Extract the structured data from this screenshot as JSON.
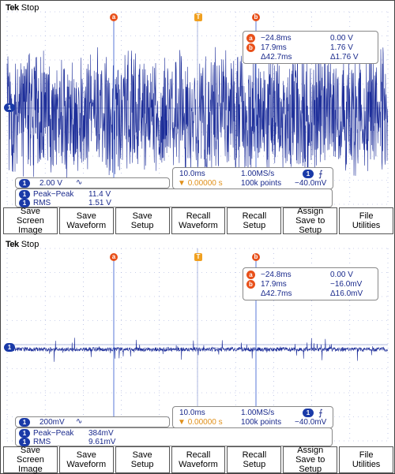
{
  "panels": [
    {
      "brand": "Tek",
      "status": "Stop",
      "cursor_a_time": "−24.8ms",
      "cursor_a_value": "0.00 V",
      "cursor_b_time": "17.9ms",
      "cursor_b_value": "1.76 V",
      "delta_time": "Δ42.7ms",
      "delta_value": "Δ1.76 V",
      "channel_label": "1",
      "channel_scale": "2.00 V",
      "coupling": "∿",
      "timebase": "10.0ms",
      "sample_rate": "1.00MS/s",
      "trigger_source": "1",
      "trigger_pos": "0.00000 s",
      "record_length": "100k points",
      "trigger_level": "−40.0mV",
      "meas1_label": "Peak−Peak",
      "meas1_value": "11.4 V",
      "meas2_label": "RMS",
      "meas2_value": "1.51 V",
      "marker_a": "a",
      "marker_b": "b",
      "trigger_marker": "T",
      "gnd_marker": "1",
      "noise_amplitude": 0.75
    },
    {
      "brand": "Tek",
      "status": "Stop",
      "cursor_a_time": "−24.8ms",
      "cursor_a_value": "0.00 V",
      "cursor_b_time": "17.9ms",
      "cursor_b_value": "−16.0mV",
      "delta_time": "Δ42.7ms",
      "delta_value": "Δ16.0mV",
      "channel_label": "1",
      "channel_scale": "200mV",
      "coupling": "∿",
      "timebase": "10.0ms",
      "sample_rate": "1.00MS/s",
      "trigger_source": "1",
      "trigger_pos": "0.00000 s",
      "record_length": "100k points",
      "trigger_level": "−40.0mV",
      "meas1_label": "Peak−Peak",
      "meas1_value": "384mV",
      "meas2_label": "RMS",
      "meas2_value": "9.61mV",
      "marker_a": "a",
      "marker_b": "b",
      "trigger_marker": "T",
      "gnd_marker": "1",
      "noise_amplitude": 0.12
    }
  ],
  "softkeys": [
    "Save\nScreen Image",
    "Save\nWaveform",
    "Save\nSetup",
    "Recall\nWaveform",
    "Recall\nSetup",
    "Assign\nSave to\nSetup",
    "File\nUtilities"
  ],
  "colors": {
    "trace": "#1e2f9a",
    "grid": "#9aa6d8",
    "cursor": "#5a7ad8",
    "marker": "#e8501a",
    "trigger": "#f0a020"
  }
}
